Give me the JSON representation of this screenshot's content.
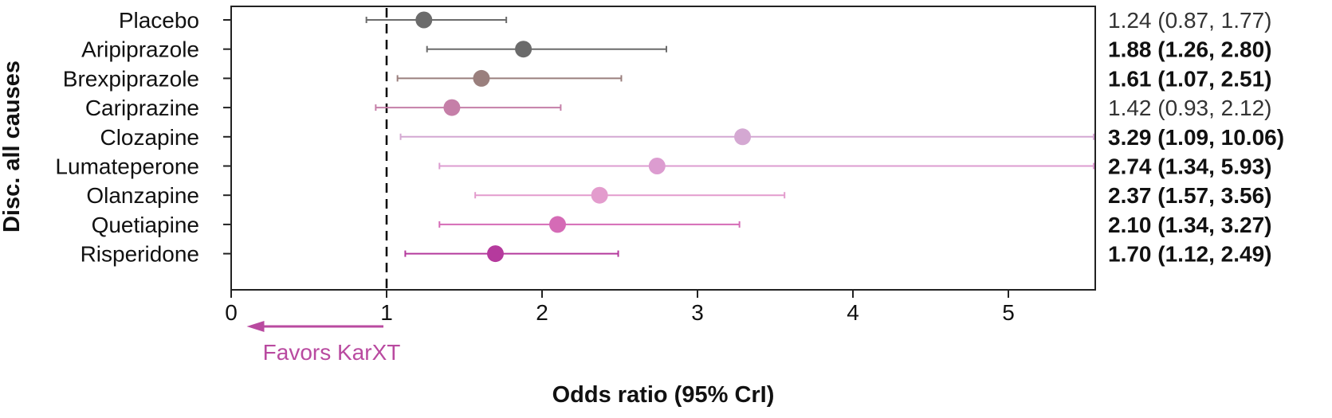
{
  "chart_data": {
    "type": "scatter",
    "subtype": "forest-plot",
    "title": "",
    "ylabel": "Disc. all causes",
    "xlabel": "Odds ratio (95% CrI)",
    "xlim": [
      0,
      5.15
    ],
    "xticks": [
      0,
      1,
      2,
      3,
      4,
      5
    ],
    "xtick_labels": [
      "0",
      "1",
      "2",
      "3",
      "4",
      "5"
    ],
    "reference_line": 1,
    "grid": false,
    "annotation": {
      "text": "Favors KarXT",
      "arrow_from": 1,
      "arrow_to": 0.1,
      "color": "#b94aa0"
    },
    "categories": [
      "Placebo",
      "Aripiprazole",
      "Brexpiprazole",
      "Cariprazine",
      "Clozapine",
      "Lumateperone",
      "Olanzapine",
      "Quetiapine",
      "Risperidone"
    ],
    "points": [
      {
        "label": "Placebo",
        "or": 1.24,
        "low": 0.87,
        "high": 1.77,
        "text": "1.24 (0.87, 1.77)",
        "bold": false,
        "color": "#6b6b6b"
      },
      {
        "label": "Aripiprazole",
        "or": 1.88,
        "low": 1.26,
        "high": 2.8,
        "text": "1.88 (1.26, 2.80)",
        "bold": true,
        "color": "#6b6b6b"
      },
      {
        "label": "Brexpiprazole",
        "or": 1.61,
        "low": 1.07,
        "high": 2.51,
        "text": "1.61 (1.07, 2.51)",
        "bold": true,
        "color": "#9a7f7d"
      },
      {
        "label": "Cariprazine",
        "or": 1.42,
        "low": 0.93,
        "high": 2.12,
        "text": "1.42 (0.93, 2.12)",
        "bold": false,
        "color": "#c57fa8"
      },
      {
        "label": "Clozapine",
        "or": 3.29,
        "low": 1.09,
        "high": 10.06,
        "text": "3.29 (1.09, 10.06)",
        "bold": true,
        "color": "#d4a8d2"
      },
      {
        "label": "Lumateperone",
        "or": 2.74,
        "low": 1.34,
        "high": 5.93,
        "text": "2.74 (1.34, 5.93)",
        "bold": true,
        "color": "#dc9cd0"
      },
      {
        "label": "Olanzapine",
        "or": 2.37,
        "low": 1.57,
        "high": 3.56,
        "text": "2.37 (1.57, 3.56)",
        "bold": true,
        "color": "#e39ccd"
      },
      {
        "label": "Quetiapine",
        "or": 2.1,
        "low": 1.34,
        "high": 3.27,
        "text": "2.10 (1.34, 3.27)",
        "bold": true,
        "color": "#d56bb6"
      },
      {
        "label": "Risperidone",
        "or": 1.7,
        "low": 1.12,
        "high": 2.49,
        "text": "1.70 (1.12, 2.49)",
        "bold": true,
        "color": "#b53a9d"
      }
    ]
  }
}
